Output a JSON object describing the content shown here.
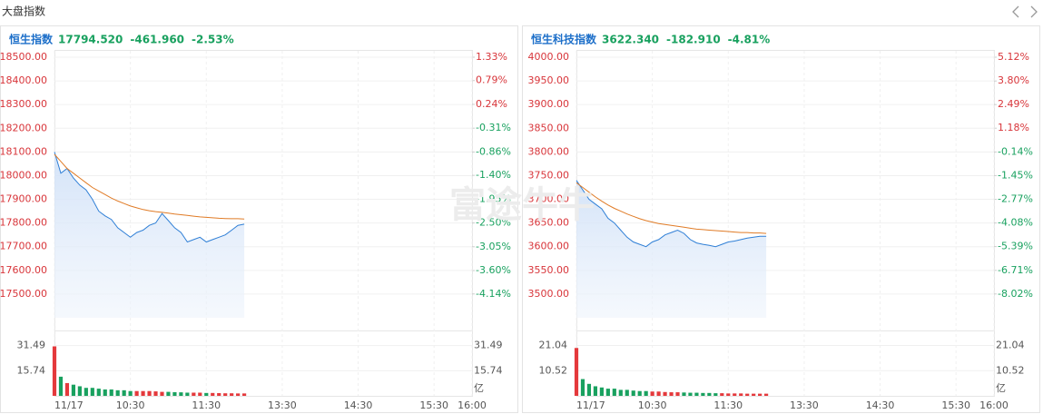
{
  "header": {
    "title": "大盘指数"
  },
  "watermark": "富途牛牛",
  "chart_data": [
    {
      "type": "line",
      "title": "恒生指数",
      "price": "17794.520",
      "change": "-461.960",
      "change_pct": "-2.53%",
      "x": [
        0,
        5,
        10,
        15,
        20,
        25,
        30,
        35,
        40,
        45,
        50,
        55,
        60,
        65,
        70,
        75,
        80,
        85,
        90,
        95,
        100,
        105,
        110,
        115,
        120,
        125,
        130,
        135,
        140,
        145,
        150
      ],
      "xlim": [
        0,
        330
      ],
      "xticks": [
        {
          "value": 0,
          "label": "11/17"
        },
        {
          "value": 60,
          "label": "10:30"
        },
        {
          "value": 120,
          "label": "11:30"
        },
        {
          "value": 180,
          "label": "13:30"
        },
        {
          "value": 240,
          "label": "14:30"
        },
        {
          "value": 300,
          "label": "15:30"
        },
        {
          "value": 330,
          "label": "16:00"
        }
      ],
      "ylim": [
        17400,
        18500
      ],
      "yticks": [
        {
          "value": 18500,
          "label": "18500.00"
        },
        {
          "value": 18400,
          "label": "18400.00"
        },
        {
          "value": 18300,
          "label": "18300.00"
        },
        {
          "value": 18200,
          "label": "18200.00"
        },
        {
          "value": 18100,
          "label": "18100.00"
        },
        {
          "value": 18000,
          "label": "18000.00"
        },
        {
          "value": 17900,
          "label": "17900.00"
        },
        {
          "value": 17800,
          "label": "17800.00"
        },
        {
          "value": 17700,
          "label": "17700.00"
        },
        {
          "value": 17600,
          "label": "17600.00"
        },
        {
          "value": 17500,
          "label": "17500.00"
        }
      ],
      "y2lim": [
        -4.69,
        1.33
      ],
      "y2ticks": [
        {
          "value": 1.33,
          "label": "1.33%"
        },
        {
          "value": 0.79,
          "label": "0.79%"
        },
        {
          "value": 0.24,
          "label": "0.24%"
        },
        {
          "value": -0.31,
          "label": "-0.31%"
        },
        {
          "value": -0.86,
          "label": "-0.86%"
        },
        {
          "value": -1.4,
          "label": "-1.40%"
        },
        {
          "value": -1.95,
          "label": "-1.95%"
        },
        {
          "value": -2.5,
          "label": "-2.50%"
        },
        {
          "value": -3.05,
          "label": "-3.05%"
        },
        {
          "value": -3.6,
          "label": "-3.60%"
        },
        {
          "value": -4.14,
          "label": "-4.14%"
        }
      ],
      "series": [
        {
          "color": "#2f7fd6",
          "values": [
            18100,
            18010,
            18030,
            17990,
            17960,
            17940,
            17900,
            17850,
            17830,
            17815,
            17780,
            17760,
            17740,
            17760,
            17770,
            17790,
            17800,
            17840,
            17810,
            17780,
            17760,
            17720,
            17730,
            17740,
            17720,
            17730,
            17740,
            17750,
            17770,
            17790,
            17795
          ]
        },
        {
          "color": "#e07b26",
          "values": [
            18090,
            18060,
            18030,
            18010,
            17990,
            17970,
            17950,
            17935,
            17920,
            17905,
            17893,
            17882,
            17872,
            17864,
            17857,
            17852,
            17848,
            17845,
            17842,
            17838,
            17835,
            17832,
            17829,
            17826,
            17824,
            17822,
            17820,
            17819,
            17818,
            17818,
            17817
          ]
        }
      ],
      "volume": {
        "values": [
          31,
          12,
          8,
          7,
          6,
          5,
          5,
          4.5,
          4,
          4,
          3.5,
          3.5,
          3,
          3,
          3,
          3,
          2.8,
          2.5,
          2.5,
          2.3,
          2.2,
          2,
          2,
          2,
          1.8,
          1.8,
          1.7,
          1.6,
          1.6,
          1.5,
          1.5
        ],
        "ylim": [
          0,
          33
        ],
        "yticks": [
          31.49,
          15.74
        ],
        "unit": "亿",
        "up_color": "#e4393c",
        "down_color": "#19a15f"
      }
    },
    {
      "type": "line",
      "title": "恒生科技指数",
      "price": "3622.340",
      "change": "-182.910",
      "change_pct": "-4.81%",
      "x": [
        0,
        5,
        10,
        15,
        20,
        25,
        30,
        35,
        40,
        45,
        50,
        55,
        60,
        65,
        70,
        75,
        80,
        85,
        90,
        95,
        100,
        105,
        110,
        115,
        120,
        125,
        130,
        135,
        140,
        145,
        150
      ],
      "xlim": [
        0,
        330
      ],
      "xticks": [
        {
          "value": 0,
          "label": "11/17"
        },
        {
          "value": 60,
          "label": "10:30"
        },
        {
          "value": 120,
          "label": "11:30"
        },
        {
          "value": 180,
          "label": "13:30"
        },
        {
          "value": 240,
          "label": "14:30"
        },
        {
          "value": 300,
          "label": "15:30"
        },
        {
          "value": 330,
          "label": "16:00"
        }
      ],
      "ylim": [
        3450,
        4000
      ],
      "yticks": [
        {
          "value": 4000,
          "label": "4000.00"
        },
        {
          "value": 3950,
          "label": "3950.00"
        },
        {
          "value": 3900,
          "label": "3900.00"
        },
        {
          "value": 3850,
          "label": "3850.00"
        },
        {
          "value": 3800,
          "label": "3800.00"
        },
        {
          "value": 3750,
          "label": "3750.00"
        },
        {
          "value": 3700,
          "label": "3700.00"
        },
        {
          "value": 3650,
          "label": "3650.00"
        },
        {
          "value": 3600,
          "label": "3600.00"
        },
        {
          "value": 3550,
          "label": "3550.00"
        },
        {
          "value": 3500,
          "label": "3500.00"
        }
      ],
      "y2lim": [
        -9.34,
        5.12
      ],
      "y2ticks": [
        {
          "value": 5.12,
          "label": "5.12%"
        },
        {
          "value": 3.8,
          "label": "3.80%"
        },
        {
          "value": 2.49,
          "label": "2.49%"
        },
        {
          "value": 1.18,
          "label": "1.18%"
        },
        {
          "value": -0.14,
          "label": "-0.14%"
        },
        {
          "value": -1.45,
          "label": "-1.45%"
        },
        {
          "value": -2.77,
          "label": "-2.77%"
        },
        {
          "value": -4.08,
          "label": "-4.08%"
        },
        {
          "value": -5.39,
          "label": "-5.39%"
        },
        {
          "value": -6.71,
          "label": "-6.71%"
        },
        {
          "value": -8.02,
          "label": "-8.02%"
        }
      ],
      "series": [
        {
          "color": "#2f7fd6",
          "values": [
            3740,
            3720,
            3700,
            3690,
            3680,
            3660,
            3650,
            3635,
            3620,
            3610,
            3605,
            3600,
            3610,
            3615,
            3625,
            3630,
            3635,
            3628,
            3615,
            3608,
            3605,
            3603,
            3600,
            3605,
            3610,
            3612,
            3615,
            3618,
            3620,
            3622,
            3622
          ]
        },
        {
          "color": "#e07b26",
          "values": [
            3735,
            3725,
            3715,
            3705,
            3696,
            3688,
            3681,
            3675,
            3669,
            3664,
            3659,
            3655,
            3652,
            3649,
            3647,
            3645,
            3643,
            3641,
            3639,
            3637,
            3636,
            3635,
            3634,
            3633,
            3632,
            3631,
            3630,
            3630,
            3629,
            3629,
            3628
          ]
        }
      ],
      "volume": {
        "values": [
          20,
          7,
          5,
          4,
          3.5,
          3,
          3,
          2.5,
          2.5,
          2.2,
          2,
          2,
          1.8,
          1.8,
          1.6,
          1.5,
          1.5,
          1.4,
          1.3,
          1.3,
          1.2,
          1.2,
          1.1,
          1.1,
          1,
          1,
          1,
          0.9,
          0.9,
          0.9,
          0.9
        ],
        "ylim": [
          0,
          22
        ],
        "yticks": [
          21.04,
          10.52
        ],
        "unit": "亿",
        "up_color": "#e4393c",
        "down_color": "#19a15f"
      }
    }
  ]
}
